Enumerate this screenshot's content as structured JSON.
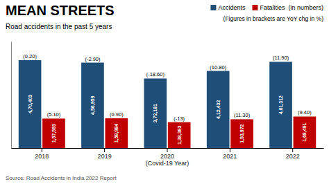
{
  "chart_data": {
    "type": "bar",
    "title": "MEAN STREETS",
    "subtitle": "Road accidents in the past 5 years",
    "annotations": [
      "(Figures in brackets are YoY chg in %)",
      "Source: Road Accidents in India 2022 Report"
    ],
    "categories": [
      "2018",
      "2019",
      "2020\n(Covid-19 Year)",
      "2021",
      "2022"
    ],
    "series": [
      {
        "name": "Accidents",
        "color": "#1F4E79",
        "values": [
          470403,
          456959,
          372181,
          412432,
          461312
        ],
        "value_labels": [
          "4,70,403",
          "4,56,959",
          "3,72,181",
          "4,12,432",
          "4,61,312"
        ],
        "yoy_labels": [
          "(0.20)",
          "(-2.90)",
          "(-18.60)",
          "(10.80)",
          "(11.90)"
        ]
      },
      {
        "name": "Fatalities  (in numbers)",
        "color": "#C00000",
        "values": [
          157593,
          158984,
          138383,
          153972,
          168491
        ],
        "value_labels": [
          "1,57,593",
          "1,58,984",
          "1,38,383",
          "1,53,972",
          "1,68,491"
        ],
        "yoy_labels": [
          "(5.10)",
          "(0.90)",
          "(-13)",
          "(11.30)",
          "(9.40)"
        ]
      }
    ],
    "ylim": [
      0,
      570000
    ],
    "data_labels": true,
    "tick_labels": "x",
    "grid": false,
    "legend": "upper right"
  }
}
